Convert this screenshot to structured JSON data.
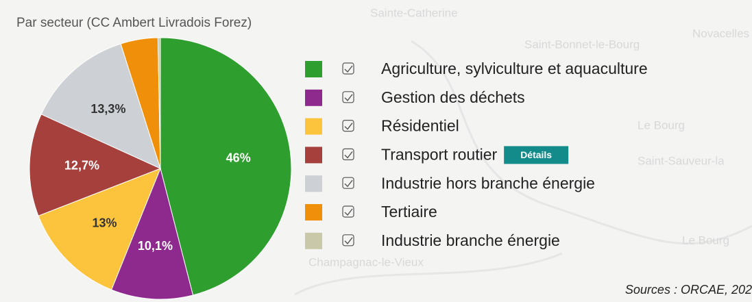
{
  "chart_data": {
    "type": "pie",
    "title": "Par secteur (CC Ambert Livradois Forez)",
    "categories": [
      "Agriculture, sylviculture et aquaculture",
      "Gestion des déchets",
      "Résidentiel",
      "Transport routier",
      "Industrie hors branche énergie",
      "Tertiaire",
      "Industrie branche énergie"
    ],
    "values": [
      46,
      10.1,
      13,
      12.7,
      13.3,
      4.6,
      0.3
    ],
    "value_labels": [
      "46%",
      "10,1%",
      "13%",
      "12,7%",
      "13,3%",
      null,
      null
    ],
    "colors": [
      "#2e9e2e",
      "#8e2a8e",
      "#fcc43c",
      "#a6403c",
      "#cdd0d4",
      "#f0900a",
      "#c9c9a9"
    ],
    "value_label_colors": [
      "#ffffff",
      "#ffffff",
      "#333333",
      "#ffffff",
      "#333333",
      "#333333",
      "#333333"
    ],
    "details_button": "Détails",
    "source": "Sources : ORCAE, 202",
    "map_labels": [
      "Sainte-Catherine",
      "Saint-Bonnet-le-Bourg",
      "Novacelles",
      "Le Bourg",
      "Saint-Sauveur-la",
      "Champagnac-le-Vieux",
      "Le Bourg"
    ]
  }
}
